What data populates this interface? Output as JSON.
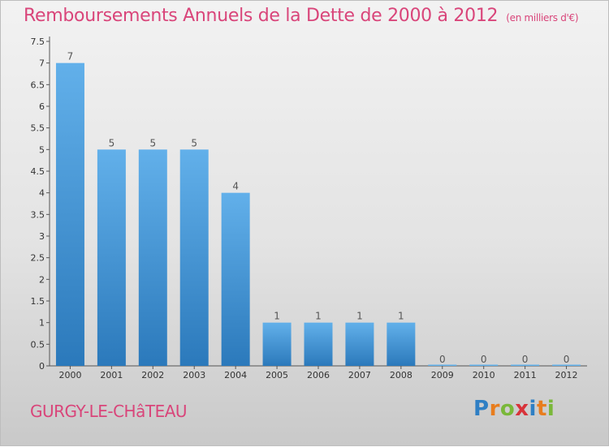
{
  "title": "Remboursements Annuels de la Dette de 2000 à 2012",
  "unit": "(en milliers d'€)",
  "commune": "GURGY-LE-CHâTEAU",
  "logo": {
    "letters": [
      "P",
      "r",
      "o",
      "x",
      "i",
      "t",
      "i"
    ],
    "colors": [
      "#2f7fc4",
      "#e87d1e",
      "#7ab83a",
      "#d8333a",
      "#2f7fc4",
      "#e87d1e",
      "#7ab83a"
    ]
  },
  "colors": {
    "bar_top": "#62b0ea",
    "bar_bottom": "#2b79bb",
    "title": "#d9457a"
  },
  "chart_data": {
    "type": "bar",
    "categories": [
      "2000",
      "2001",
      "2002",
      "2003",
      "2004",
      "2005",
      "2006",
      "2007",
      "2008",
      "2009",
      "2010",
      "2011",
      "2012"
    ],
    "values": [
      7,
      5,
      5,
      5,
      4,
      1,
      1,
      1,
      1,
      0,
      0,
      0,
      0
    ],
    "value_labels": [
      "7",
      "5",
      "5",
      "5",
      "4",
      "1",
      "1",
      "1",
      "1",
      "0",
      "0",
      "0",
      "0"
    ],
    "yticks": [
      "0",
      "0.5",
      "1",
      "1.5",
      "2",
      "2.5",
      "3",
      "3.5",
      "4",
      "4.5",
      "5",
      "5.5",
      "6",
      "6.5",
      "7",
      "7.5"
    ],
    "ylim": [
      0,
      7.5
    ],
    "grid": false,
    "legend": "none"
  }
}
